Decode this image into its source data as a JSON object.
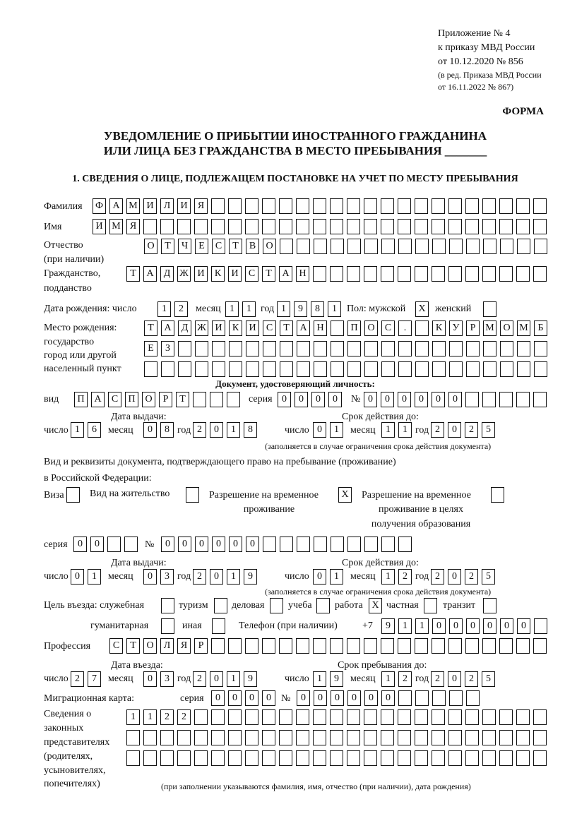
{
  "header": {
    "line1": "Приложение № 4",
    "line2": "к приказу МВД России",
    "line3": "от 10.12.2020 № 856",
    "line4": "(в ред. Приказа МВД России",
    "line5": "от 16.11.2022 № 867)",
    "form": "ФОРМА",
    "title1": "УВЕДОМЛЕНИЕ О ПРИБЫТИИ ИНОСТРАННОГО ГРАЖДАНИНА",
    "title2": "ИЛИ ЛИЦА БЕЗ ГРАЖДАНСТВА В МЕСТО ПРЕБЫВАНИЯ _______",
    "section1": "1. СВЕДЕНИЯ О ЛИЦЕ, ПОДЛЕЖАЩЕМ ПОСТАНОВКЕ НА УЧЕТ ПО МЕСТУ ПРЕБЫВАНИЯ"
  },
  "labels": {
    "surname": "Фамилия",
    "name": "Имя",
    "patronymic": "Отчество",
    "patronymic2": "(при наличии)",
    "citizenship": "Гражданство,",
    "citizenship2": "подданство",
    "birth_date": "Дата рождения:  число",
    "month": "месяц",
    "year": "год",
    "sex": "Пол: мужской",
    "female": "женский",
    "birthplace1": "Место рождения:",
    "birthplace2": "государство",
    "birthplace3": "город или другой",
    "birthplace4": "населенный пункт",
    "id_doc": "Документ, удостоверяющий личность:",
    "kind": "вид",
    "series": "серия",
    "number": "№",
    "issue_date": "Дата выдачи:",
    "valid_until": "Срок действия до:",
    "day": "число",
    "validity_note": "(заполняется в случае ограничения срока действия документа)",
    "stay_doc1": "Вид и реквизиты документа, подтверждающего право на пребывание (проживание)",
    "stay_doc2": "в Российской Федерации:",
    "visa": "Виза",
    "residence": "Вид на жительство",
    "temp1": "Разрешение на временное",
    "temp2": "проживание",
    "edu1": "Разрешение на временное",
    "edu2": "проживание в целях",
    "edu3": "получения образования",
    "purpose": "Цель въезда: служебная",
    "tourism": "туризм",
    "business": "деловая",
    "study": "учеба",
    "work": "работа",
    "private": "частная",
    "transit": "транзит",
    "humanitarian": "гуманитарная",
    "other": "иная",
    "phone": "Телефон (при наличии)",
    "phone_prefix": "+7",
    "profession": "Профессия",
    "entry_date": "Дата въезда:",
    "stay_until": "Срок пребывания до:",
    "migration_card": "Миграционная карта:",
    "reps1": "Сведения о",
    "reps2": "законных",
    "reps3": "представителях",
    "reps4": "(родителях,",
    "reps5": "усыновителях,",
    "reps6": "попечителях)",
    "reps_note": "(при заполнении указываются фамилия, имя, отчество (при наличии), дата рождения)"
  },
  "boxes": {
    "surname": "ФАМИЛИЯ",
    "name": "ИМЯ",
    "patronymic": "ОТЧЕСТВО",
    "citizenship": "ТАДЖИКИСТАН",
    "bd_day": "12",
    "bd_month": "11",
    "bd_year": "1981",
    "sex_male": "X",
    "sex_female": "",
    "bp1": "ТАДЖИКИСТАН ПОС. КУРМОМБ",
    "bp2": "ЕЗ",
    "bp3": "",
    "doc_kind": "ПАСПОРТ",
    "doc_series": "0000",
    "doc_number": "000000",
    "doc_issue_day": "16",
    "doc_issue_month": "08",
    "doc_issue_year": "2018",
    "doc_valid_day": "01",
    "doc_valid_month": "11",
    "doc_valid_year": "2025",
    "visa": "",
    "residence": "",
    "temp_residence": "X",
    "temp_residence_edu": "",
    "stay_series": "00",
    "stay_number": "000000",
    "stay_issue_day": "01",
    "stay_issue_month": "03",
    "stay_issue_year": "2019",
    "stay_valid_day": "01",
    "stay_valid_month": "12",
    "stay_valid_year": "2025",
    "p_official": "",
    "p_tourism": "",
    "p_business": "",
    "p_study": "",
    "p_work": "X",
    "p_private": "",
    "p_transit": "",
    "p_humanitarian": "",
    "p_other": "",
    "phone": "911000000",
    "profession": "СТОЛЯР",
    "entry_day": "27",
    "entry_month": "03",
    "entry_year": "2019",
    "until_day": "19",
    "until_month": "12",
    "until_year": "2025",
    "mc_series": "0000",
    "mc_number": "000000",
    "reps1": "1122",
    "reps2": "",
    "reps3": ""
  }
}
